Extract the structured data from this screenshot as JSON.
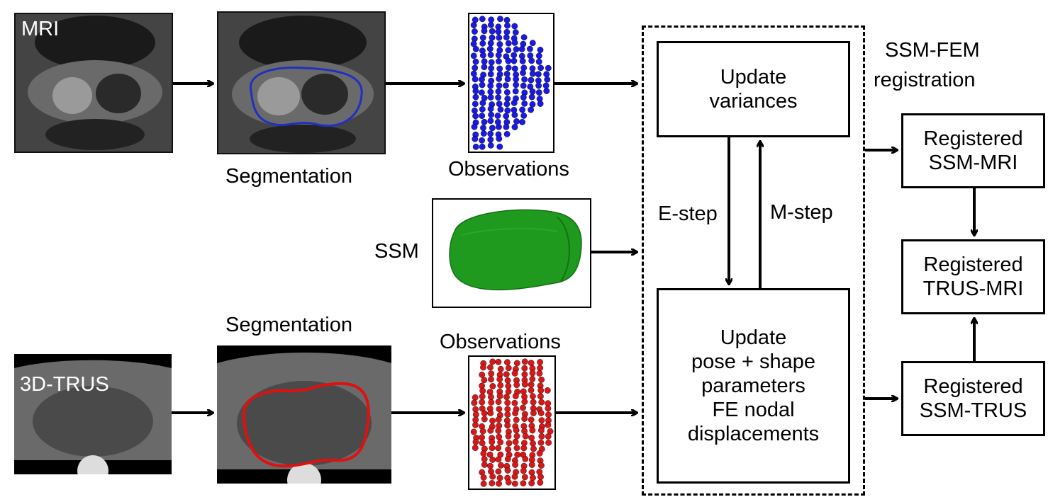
{
  "labels": {
    "mri": "MRI",
    "trus": "3D-TRUS",
    "segmentation_top": "Segmentation",
    "segmentation_bottom": "Segmentation",
    "observations_top": "Observations",
    "observations_bottom": "Observations",
    "ssm": "SSM",
    "ssm_fem_line1": "SSM-FEM",
    "ssm_fem_line2": "registration",
    "e_step": "E-step",
    "m_step": "M-step"
  },
  "boxes": {
    "update_variances": [
      "Update",
      "variances"
    ],
    "update_pose": [
      "Update",
      "pose + shape",
      "parameters",
      "FE nodal",
      "displacements"
    ],
    "registered_ssm_mri": [
      "Registered",
      "SSM-MRI"
    ],
    "registered_trus_mri": [
      "Registered",
      "TRUS-MRI"
    ],
    "registered_ssm_trus": [
      "Registered",
      "SSM-TRUS"
    ]
  },
  "colors": {
    "contour_mri": "#2030c0",
    "contour_trus": "#e01010",
    "points_mri": "#1a1ae0",
    "points_trus": "#d81818",
    "ssm_shape": "#1f9a1f"
  }
}
